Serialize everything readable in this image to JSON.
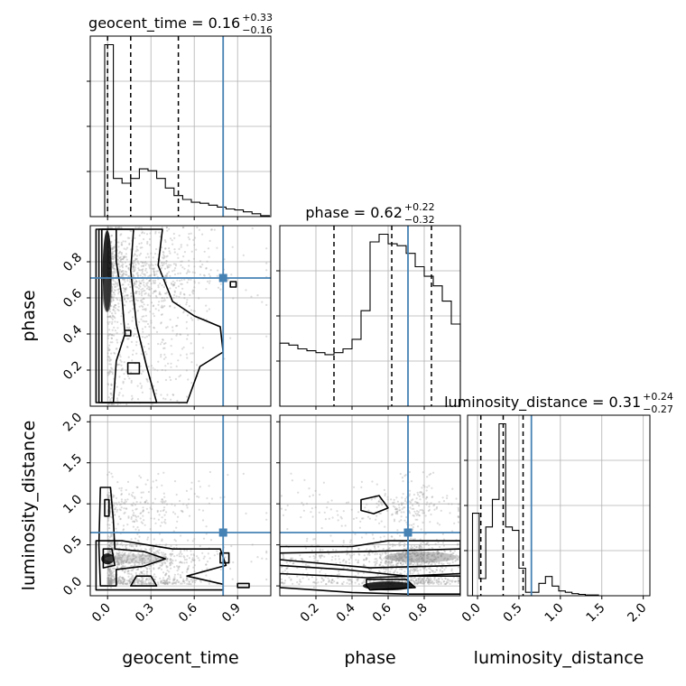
{
  "chart_data": {
    "type": "corner",
    "parameters": [
      "geocent_time",
      "phase",
      "luminosity_distance"
    ],
    "truth": {
      "geocent_time": 0.8,
      "phase": 0.71,
      "luminosity_distance": 0.65
    },
    "truth_color": "#4682b4",
    "ranges": {
      "geocent_time": [
        -0.12,
        1.13
      ],
      "phase": [
        0.0,
        1.0
      ],
      "luminosity_distance": [
        -0.12,
        2.08
      ]
    },
    "tick_labels": {
      "geocent_time": {
        "values": [
          0.0,
          0.3,
          0.6,
          0.9
        ],
        "labels": [
          "0.0",
          "0.3",
          "0.6",
          "0.9"
        ]
      },
      "phase": {
        "values": [
          0.2,
          0.4,
          0.6,
          0.8
        ],
        "labels": [
          "0.2",
          "0.4",
          "0.6",
          "0.8"
        ]
      },
      "luminosity_distance": {
        "values": [
          0.0,
          0.5,
          1.0,
          1.5,
          2.0
        ],
        "labels": [
          "0.0",
          "0.5",
          "1.0",
          "1.5",
          "2.0"
        ]
      }
    },
    "axis_labels": {
      "x": [
        "geocent_time",
        "phase",
        "luminosity_distance"
      ],
      "y": [
        "phase",
        "luminosity_distance"
      ]
    },
    "titles": [
      {
        "param": "geocent_time",
        "text": "geocent_time = 0.16",
        "plus": "+0.33",
        "minus": "−0.16"
      },
      {
        "param": "phase",
        "text": "phase = 0.62",
        "plus": "+0.22",
        "minus": "−0.32"
      },
      {
        "param": "luminosity_distance",
        "text": "luminosity_distance = 0.31",
        "plus": "+0.24",
        "minus": "−0.27"
      }
    ],
    "quantiles": {
      "geocent_time": [
        0.0,
        0.16,
        0.49
      ],
      "phase": [
        0.3,
        0.62,
        0.84
      ],
      "luminosity_distance": [
        0.04,
        0.31,
        0.55
      ]
    },
    "histograms": {
      "geocent_time": {
        "bin_edges": [
          -0.02,
          0.04,
          0.1,
          0.16,
          0.22,
          0.28,
          0.34,
          0.4,
          0.46,
          0.52,
          0.58,
          0.64,
          0.7,
          0.76,
          0.82,
          0.88,
          0.94,
          1.0,
          1.06,
          1.12
        ],
        "counts": [
          180,
          40,
          35,
          40,
          50,
          48,
          40,
          30,
          22,
          18,
          15,
          14,
          12,
          10,
          8,
          7,
          5,
          3,
          1
        ]
      },
      "phase": {
        "bin_edges": [
          0.0,
          0.05,
          0.1,
          0.15,
          0.2,
          0.25,
          0.3,
          0.35,
          0.4,
          0.45,
          0.5,
          0.55,
          0.6,
          0.65,
          0.7,
          0.75,
          0.8,
          0.85,
          0.9,
          0.95,
          1.0
        ],
        "counts": [
          33,
          32,
          30,
          29,
          28,
          27,
          28,
          30,
          35,
          50,
          86,
          90,
          85,
          84,
          80,
          73,
          68,
          63,
          55,
          43
        ]
      },
      "luminosity_distance": {
        "bin_edges": [
          -0.06,
          0.02,
          0.1,
          0.18,
          0.26,
          0.34,
          0.42,
          0.5,
          0.58,
          0.66,
          0.74,
          0.82,
          0.9,
          0.98,
          1.06,
          1.14,
          1.22,
          1.3,
          1.38,
          1.46
        ],
        "counts": [
          120,
          25,
          100,
          140,
          250,
          100,
          95,
          40,
          5,
          5,
          18,
          28,
          14,
          7,
          5,
          3,
          2,
          1,
          1
        ]
      }
    },
    "grid": true,
    "contour_color": "#000000",
    "point_color": "#9a9a9a"
  }
}
